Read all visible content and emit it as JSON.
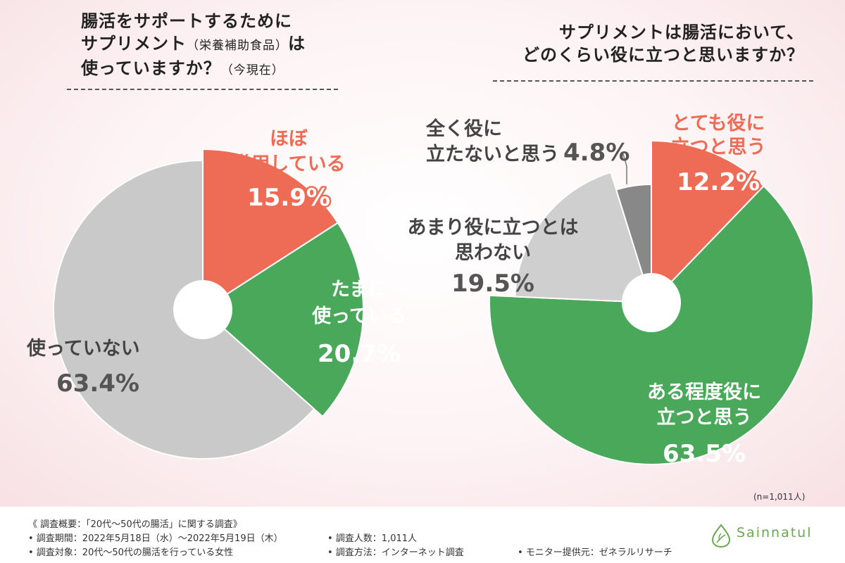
{
  "page": {
    "n_note": "(n=1,011人)",
    "brand_name": "Sainnatul",
    "brand_color": "#6aa84f",
    "brand_icon": "leaf-drop-icon"
  },
  "left": {
    "title_line1": "腸活をサポートするために",
    "title_line2a": "サプリメント",
    "title_line2b": "（栄養補助食品）",
    "title_line2c": "は",
    "title_line3a": "使っていますか？",
    "title_line3b": "（今現在）"
  },
  "right": {
    "title_line1": "サプリメントは腸活において、",
    "title_line2": "どのくらい役に立つと思いますか？"
  },
  "footer": {
    "summary": "《 調査概要：「20代～50代の腸活」に関する調査》",
    "period": "• 調査期間：2022年5月18日（水）～2022年5月19日（木）",
    "target": "• 調査対象：20代～50代の腸活を行っている女性",
    "people": "• 調査人数：1,011人",
    "method": "• 調査方法：インターネット調査",
    "provider": "• モニター提供元：ゼネラルリサーチ"
  },
  "chart_data": [
    {
      "type": "pie",
      "title": "腸活をサポートするためにサプリメント（栄養補助食品）は使っていますか？（今現在）",
      "slices": [
        {
          "label": "ほぼ常用している",
          "value": 15.9,
          "value_label": "15.9%",
          "color": "#ee6c55"
        },
        {
          "label": "たまに使っている",
          "value": 20.7,
          "value_label": "20.7%",
          "color": "#4aa85a"
        },
        {
          "label": "使っていない",
          "value": 63.4,
          "value_label": "63.4%",
          "color": "#c9c9c9"
        }
      ]
    },
    {
      "type": "pie",
      "title": "サプリメントは腸活において、どのくらい役に立つと思いますか？",
      "slices": [
        {
          "label": "とても役に立つと思う",
          "value": 12.2,
          "value_label": "12.2%",
          "color": "#ee6c55"
        },
        {
          "label": "ある程度役に立つと思う",
          "value": 63.5,
          "value_label": "63.5%",
          "color": "#4aa85a"
        },
        {
          "label": "あまり役に立つとは思わない",
          "value": 19.5,
          "value_label": "19.5%",
          "color": "#cfcfcf"
        },
        {
          "label": "全く役に立たないと思う",
          "value": 4.8,
          "value_label": "4.8%",
          "color": "#888888"
        }
      ]
    }
  ]
}
